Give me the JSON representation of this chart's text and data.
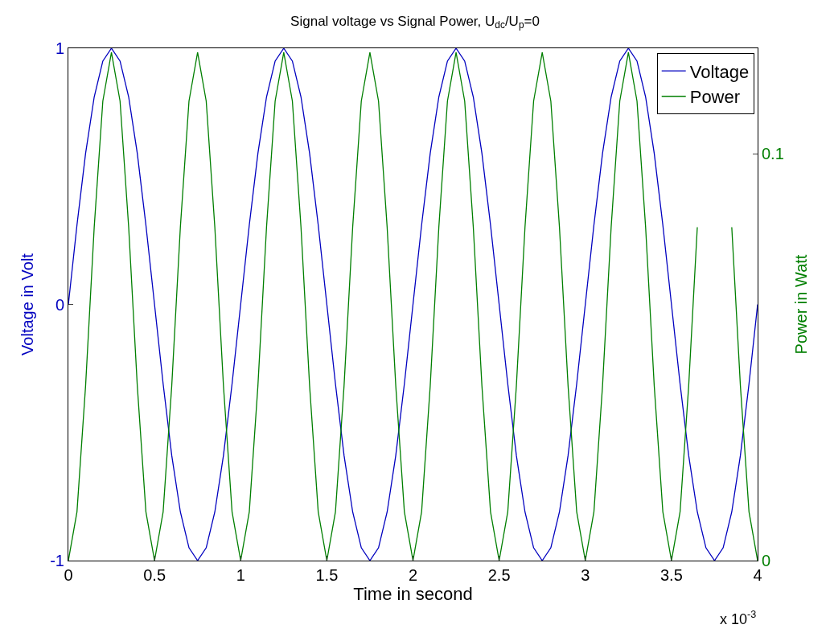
{
  "chart_data": {
    "type": "line",
    "title": "Signal voltage vs Signal Power, U$_{dc}$/U$_{p}$=0",
    "xlabel": "Time in second",
    "ylabel": "Voltage in Volt",
    "y2label": "Power in Watt",
    "annotations": [
      "x 10$^{-3}$"
    ],
    "x": [
      0,
      0.05,
      0.1,
      0.15,
      0.2,
      0.25,
      0.3,
      0.35,
      0.4,
      0.45,
      0.5,
      0.55,
      0.6,
      0.65,
      0.7,
      0.75,
      0.8,
      0.85,
      0.9,
      0.95,
      1,
      1.05,
      1.1,
      1.15,
      1.2,
      1.25,
      1.3,
      1.35,
      1.4,
      1.45,
      1.5,
      1.55,
      1.6,
      1.65,
      1.7,
      1.75,
      1.8,
      1.85,
      1.9,
      1.95,
      2,
      2.05,
      2.1,
      2.15,
      2.2,
      2.25,
      2.3,
      2.35,
      2.4,
      2.45,
      2.5,
      2.55,
      2.6,
      2.65,
      2.7,
      2.75,
      2.8,
      2.85,
      2.9,
      2.95,
      3,
      3.05,
      3.1,
      3.15,
      3.2,
      3.25,
      3.3,
      3.35,
      3.4,
      3.45,
      3.5,
      3.55,
      3.6,
      3.65,
      3.7,
      3.75,
      3.8,
      3.85,
      3.9,
      3.95,
      4
    ],
    "series": [
      {
        "name": "Voltage",
        "color": "#0000bf",
        "values": [
          0,
          0.31,
          0.59,
          0.81,
          0.95,
          1,
          0.95,
          0.81,
          0.59,
          0.31,
          0,
          -0.31,
          -0.59,
          -0.81,
          -0.95,
          -1,
          -0.95,
          -0.81,
          -0.59,
          -0.31,
          0,
          0.31,
          0.59,
          0.81,
          0.95,
          1,
          0.95,
          0.81,
          0.59,
          0.31,
          0,
          -0.31,
          -0.59,
          -0.81,
          -0.95,
          -1,
          -0.95,
          -0.81,
          -0.59,
          -0.31,
          0,
          0.31,
          0.59,
          0.81,
          0.95,
          1,
          0.95,
          0.81,
          0.59,
          0.31,
          0,
          -0.31,
          -0.59,
          -0.81,
          -0.95,
          -1,
          -0.95,
          -0.81,
          -0.59,
          -0.31,
          0,
          0.31,
          0.59,
          0.81,
          0.95,
          1,
          0.95,
          0.81,
          0.59,
          0.31,
          0,
          -0.31,
          -0.59,
          -0.81,
          -0.95,
          -1,
          -0.95,
          -0.81,
          -0.59,
          -0.31,
          0
        ]
      },
      {
        "name": "Power",
        "color": "#007f00",
        "axis": "y2",
        "values": [
          0,
          0.012,
          0.043,
          0.082,
          0.113,
          0.125,
          0.113,
          0.082,
          0.043,
          0.012,
          0,
          0.012,
          0.043,
          0.082,
          0.113,
          0.125,
          0.113,
          0.082,
          0.043,
          0.012,
          0,
          0.012,
          0.043,
          0.082,
          0.113,
          0.125,
          0.113,
          0.082,
          0.043,
          0.012,
          0,
          0.012,
          0.043,
          0.082,
          0.113,
          0.125,
          0.113,
          0.082,
          0.043,
          0.012,
          0,
          0.012,
          0.043,
          0.082,
          0.113,
          0.125,
          0.113,
          0.082,
          0.043,
          0.012,
          0,
          0.012,
          0.043,
          0.082,
          0.113,
          0.125,
          0.113,
          0.082,
          0.043,
          0.012,
          0,
          0.012,
          0.043,
          0.082,
          0.113,
          0.125,
          0.113,
          0.082,
          0.043,
          0.012,
          0,
          0.012,
          0.043,
          0.082,
          null,
          null,
          null,
          0.082,
          0.043,
          0.012,
          0
        ]
      }
    ],
    "xlim": [
      0,
      4
    ],
    "xticks": [
      0,
      0.5,
      1,
      1.5,
      2,
      2.5,
      3,
      3.5,
      4
    ],
    "ylim": [
      -1,
      1
    ],
    "yticks": [
      -1,
      0,
      1
    ],
    "y2lim": [
      0,
      0.126
    ],
    "y2ticks": [
      0,
      0.1
    ],
    "legend": "top right",
    "marker": "none",
    "line_style": "solid"
  }
}
